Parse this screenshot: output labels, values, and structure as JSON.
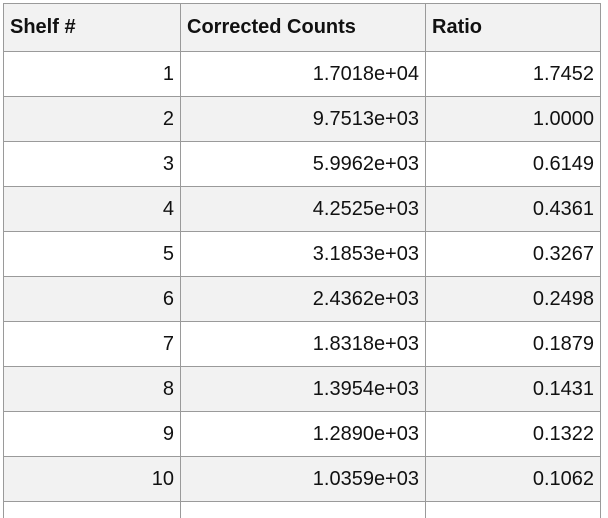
{
  "table": {
    "headers": [
      "Shelf #",
      "Corrected Counts",
      "Ratio"
    ],
    "rows": [
      [
        "1",
        "1.7018e+04",
        "1.7452"
      ],
      [
        "2",
        "9.7513e+03",
        "1.0000"
      ],
      [
        "3",
        "5.9962e+03",
        "0.6149"
      ],
      [
        "4",
        "4.2525e+03",
        "0.4361"
      ],
      [
        "5",
        "3.1853e+03",
        "0.3267"
      ],
      [
        "6",
        "2.4362e+03",
        "0.2498"
      ],
      [
        "7",
        "1.8318e+03",
        "0.1879"
      ],
      [
        "8",
        "1.3954e+03",
        "0.1431"
      ],
      [
        "9",
        "1.2890e+03",
        "0.1322"
      ],
      [
        "10",
        "1.0359e+03",
        "0.1062"
      ]
    ]
  }
}
